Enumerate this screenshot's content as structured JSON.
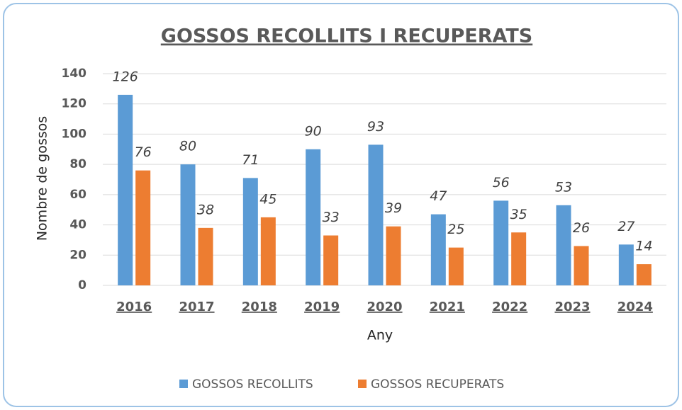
{
  "chart_data": {
    "type": "bar",
    "title": "GOSSOS RECOLLITS I RECUPERATS",
    "x_label": "Any",
    "y_label": "Nombre de gossos",
    "categories": [
      "2016",
      "2017",
      "2018",
      "2019",
      "2020",
      "2021",
      "2022",
      "2023",
      "2024"
    ],
    "series": [
      {
        "name": "GOSSOS RECOLLITS",
        "color": "#5b9bd5",
        "values": [
          126,
          80,
          71,
          90,
          93,
          47,
          56,
          53,
          27
        ]
      },
      {
        "name": "GOSSOS RECUPERATS",
        "color": "#ed7d31",
        "values": [
          76,
          38,
          45,
          33,
          39,
          25,
          35,
          26,
          14
        ]
      }
    ],
    "ylim": [
      0,
      140
    ],
    "yticks": [
      0,
      20,
      40,
      60,
      80,
      100,
      120,
      140
    ],
    "grid": true,
    "legend": "bottom"
  }
}
